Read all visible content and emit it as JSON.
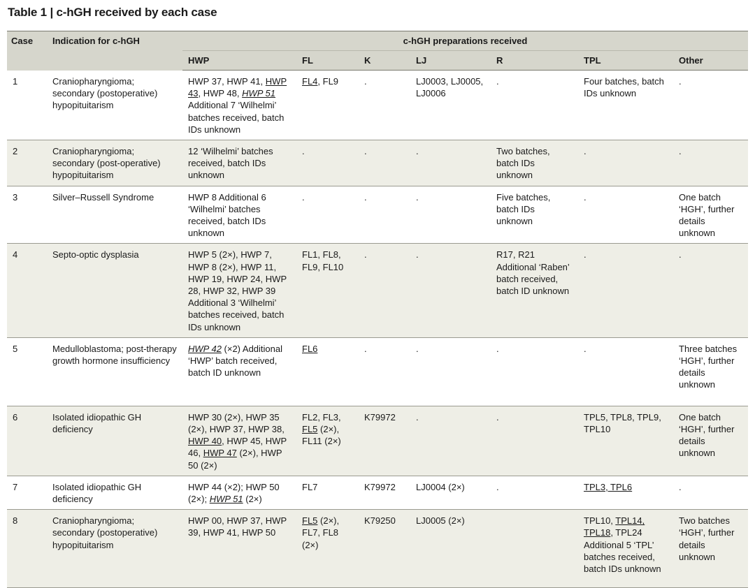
{
  "title": "Table 1 | c-hGH received by each case",
  "headers": {
    "case": "Case",
    "indication": "Indication for c-hGH",
    "group": "c-hGH preparations received",
    "cols": [
      "HWP",
      "FL",
      "K",
      "LJ",
      "R",
      "TPL",
      "Other"
    ]
  },
  "rows": [
    {
      "case": "1",
      "indication": "Craniopharyngioma; secondary (postoperative) hypopituitarism",
      "hwp": [
        {
          "t": "HWP 37, HWP 41, ",
          "s": ""
        },
        {
          "t": "HWP 43",
          "s": "u"
        },
        {
          "t": ", HWP 48, ",
          "s": ""
        },
        {
          "t": "HWP 51",
          "s": "ui"
        },
        {
          "t": " Additional 7 ‘Wilhelmi’ batches received, batch IDs unknown",
          "s": ""
        }
      ],
      "fl": [
        {
          "t": "FL4",
          "s": "u"
        },
        {
          "t": ", FL9",
          "s": ""
        }
      ],
      "k": ".",
      "lj": "LJ0003, LJ0005, LJ0006",
      "r": ".",
      "tpl": [
        {
          "t": "Four batches, batch IDs unknown",
          "s": ""
        }
      ],
      "other": "."
    },
    {
      "case": "2",
      "indication": "Craniopharyngioma; secondary (post-operative) hypopituitarism",
      "hwp": [
        {
          "t": "12 ‘Wilhelmi’ batches received, batch IDs unknown",
          "s": ""
        }
      ],
      "fl": [
        {
          "t": ".",
          "s": ""
        }
      ],
      "k": ".",
      "lj": ".",
      "r": "Two batches, batch IDs unknown",
      "tpl": [
        {
          "t": ".",
          "s": ""
        }
      ],
      "other": "."
    },
    {
      "case": "3",
      "indication": "Silver–Russell Syndrome",
      "hwp": [
        {
          "t": "HWP 8 Additional 6 ‘Wilhelmi’ batches received, batch IDs unknown",
          "s": ""
        }
      ],
      "fl": [
        {
          "t": ".",
          "s": ""
        }
      ],
      "k": ".",
      "lj": ".",
      "r": "Five batches, batch IDs unknown",
      "tpl": [
        {
          "t": ".",
          "s": ""
        }
      ],
      "other": "One batch ‘HGH’, further details unknown"
    },
    {
      "case": "4",
      "indication": "Septo-optic dysplasia",
      "hwp": [
        {
          "t": "HWP 5 (2×), HWP 7, HWP 8 (2×), HWP 11, HWP 19, HWP 24, HWP 28, HWP 32, HWP 39 Additional 3 ‘Wilhelmi’ batches received, batch IDs unknown",
          "s": ""
        }
      ],
      "fl": [
        {
          "t": "FL1, FL8, FL9, FL10",
          "s": ""
        }
      ],
      "k": ".",
      "lj": ".",
      "r": "R17, R21 Additional ‘Raben’ batch received, batch ID unknown",
      "tpl": [
        {
          "t": ".",
          "s": ""
        }
      ],
      "other": "."
    },
    {
      "case": "5",
      "indication": "Medulloblastoma; post-therapy growth hormone insufficiency",
      "hwp": [
        {
          "t": "HWP 42",
          "s": "ui"
        },
        {
          "t": " (×2) Additional ‘HWP’ batch received, batch ID unknown",
          "s": ""
        }
      ],
      "fl": [
        {
          "t": "FL6",
          "s": "u"
        }
      ],
      "k": ".",
      "lj": ".",
      "r": ".",
      "tpl": [
        {
          "t": ".",
          "s": ""
        }
      ],
      "other": "Three batches ‘HGH’, further details unknown"
    },
    {
      "case": "6",
      "indication": "Isolated idiopathic GH deficiency",
      "hwp": [
        {
          "t": "HWP 30 (2×), HWP 35 (2×), HWP 37, HWP 38, ",
          "s": ""
        },
        {
          "t": "HWP 40",
          "s": "u"
        },
        {
          "t": ", HWP 45, HWP 46, ",
          "s": ""
        },
        {
          "t": "HWP 47",
          "s": "u"
        },
        {
          "t": " (2×), HWP 50 (2×)",
          "s": ""
        }
      ],
      "fl": [
        {
          "t": "FL2, FL3, ",
          "s": ""
        },
        {
          "t": "FL5",
          "s": "u"
        },
        {
          "t": " (2×), FL11 (2×)",
          "s": ""
        }
      ],
      "k": "K79972",
      "lj": ".",
      "r": ".",
      "tpl": [
        {
          "t": "TPL5, TPL8, TPL9, TPL10",
          "s": ""
        }
      ],
      "other": "One batch ‘HGH’, further details unknown"
    },
    {
      "case": "7",
      "indication": "Isolated idiopathic GH deficiency",
      "hwp": [
        {
          "t": "HWP 44 (×2); HWP 50 (2×); ",
          "s": ""
        },
        {
          "t": "HWP 51",
          "s": "ui"
        },
        {
          "t": " (2×)",
          "s": ""
        }
      ],
      "fl": [
        {
          "t": "FL7",
          "s": ""
        }
      ],
      "k": "K79972",
      "lj": "LJ0004 (2×)",
      "r": ".",
      "tpl": [
        {
          "t": "TPL3, TPL6",
          "s": "u"
        }
      ],
      "other": "."
    },
    {
      "case": "8",
      "indication": "Craniopharyngioma; secondary (postoperative) hypopituitarism",
      "hwp": [
        {
          "t": "HWP 00, HWP 37, HWP 39, HWP 41, HWP 50",
          "s": ""
        }
      ],
      "fl": [
        {
          "t": "FL5",
          "s": "u"
        },
        {
          "t": " (2×), FL7, FL8 (2×)",
          "s": ""
        }
      ],
      "k": "K79250",
      "lj": "LJ0005 (2×)",
      "r": "",
      "tpl": [
        {
          "t": "TPL10, ",
          "s": ""
        },
        {
          "t": "TPL14, TPL18",
          "s": "u"
        },
        {
          "t": ", TPL24 Additional 5 ‘TPL’ batches received, batch IDs unknown",
          "s": ""
        }
      ],
      "other": "Two batches ‘HGH’, further details unknown"
    }
  ]
}
